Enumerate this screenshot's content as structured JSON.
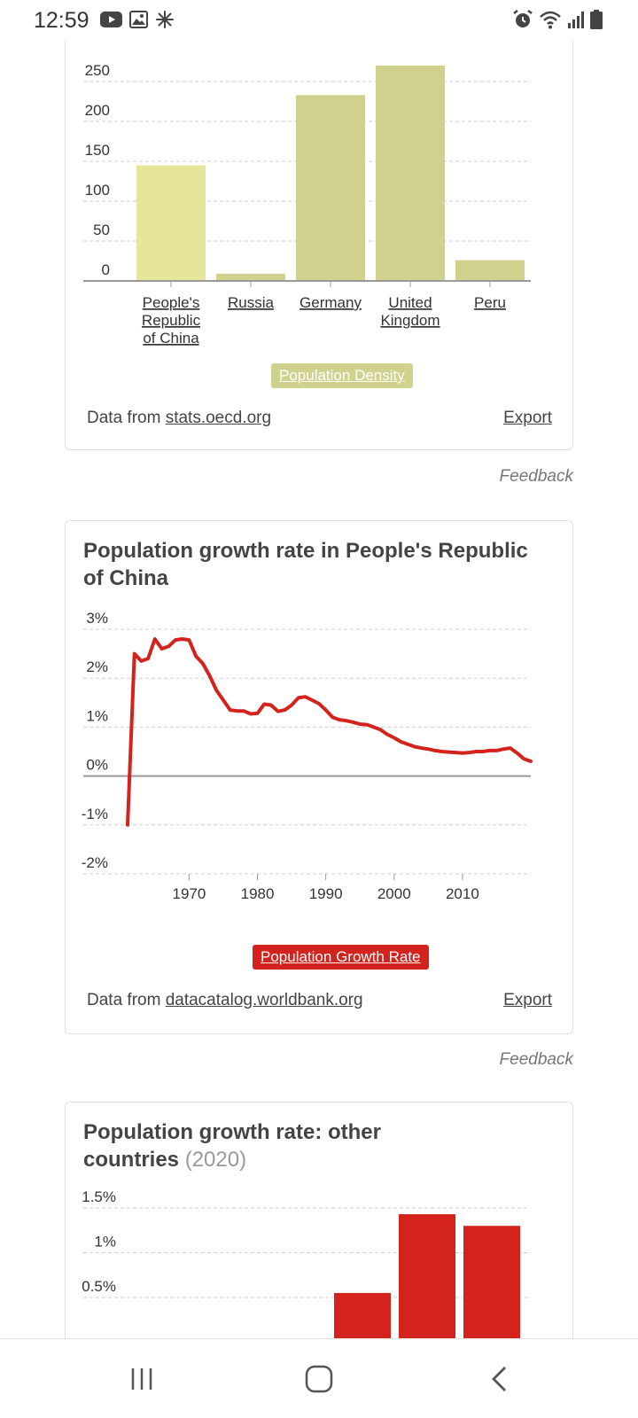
{
  "status_bar": {
    "time": "12:59",
    "left_icons": [
      "youtube-icon",
      "image-icon",
      "pinwheel-icon"
    ],
    "right_icons": [
      "alarm-icon",
      "wifi-icon",
      "signal-icon",
      "battery-icon"
    ]
  },
  "density_card": {
    "legend_label": "Population Density",
    "source_prefix": "Data from",
    "source_link": "stats.oecd.org",
    "export_label": "Export",
    "feedback_label": "Feedback",
    "colors": {
      "primary": "#e6e69a",
      "secondary": "#d1d18e"
    },
    "chart_data": {
      "type": "bar",
      "categories": [
        "People's Republic of China",
        "Russia",
        "Germany",
        "United Kingdom",
        "Peru"
      ],
      "category_lines": [
        [
          "People's",
          "Republic",
          "of China"
        ],
        [
          "Russia"
        ],
        [
          "Germany"
        ],
        [
          "United",
          "Kingdom"
        ],
        [
          "Peru"
        ]
      ],
      "values": [
        145,
        9,
        233,
        270,
        26
      ],
      "y_ticks": [
        0,
        50,
        100,
        150,
        200,
        250
      ],
      "ylim": [
        0,
        270
      ],
      "legend": "Population Density"
    }
  },
  "growth_card": {
    "title": "Population growth rate in People's Republic of China",
    "legend_label": "Population Growth Rate",
    "source_prefix": "Data from",
    "source_link": "datacatalog.worldbank.org",
    "export_label": "Export",
    "feedback_label": "Feedback",
    "colors": {
      "line": "#d3231c"
    },
    "chart_data": {
      "type": "line",
      "title": "Population growth rate in People's Republic of China",
      "x": [
        1961,
        1962,
        1963,
        1964,
        1965,
        1966,
        1967,
        1968,
        1969,
        1970,
        1971,
        1972,
        1973,
        1974,
        1975,
        1976,
        1977,
        1978,
        1979,
        1980,
        1981,
        1982,
        1983,
        1984,
        1985,
        1986,
        1987,
        1988,
        1989,
        1990,
        1991,
        1992,
        1993,
        1994,
        1995,
        1996,
        1997,
        1998,
        1999,
        2000,
        2001,
        2002,
        2003,
        2004,
        2005,
        2006,
        2007,
        2008,
        2009,
        2010,
        2011,
        2012,
        2013,
        2014,
        2015,
        2016,
        2017,
        2018,
        2019,
        2020
      ],
      "y": [
        -1.0,
        2.5,
        2.35,
        2.4,
        2.8,
        2.6,
        2.65,
        2.78,
        2.8,
        2.78,
        2.45,
        2.3,
        2.05,
        1.75,
        1.55,
        1.35,
        1.33,
        1.33,
        1.27,
        1.28,
        1.47,
        1.45,
        1.32,
        1.35,
        1.45,
        1.6,
        1.62,
        1.55,
        1.48,
        1.35,
        1.2,
        1.15,
        1.13,
        1.1,
        1.06,
        1.05,
        1.0,
        0.95,
        0.85,
        0.78,
        0.7,
        0.65,
        0.6,
        0.57,
        0.55,
        0.52,
        0.5,
        0.49,
        0.48,
        0.47,
        0.48,
        0.5,
        0.5,
        0.52,
        0.52,
        0.55,
        0.57,
        0.47,
        0.35,
        0.3
      ],
      "y_ticks": [
        3,
        2,
        1,
        0,
        -1,
        -2
      ],
      "y_tick_labels": [
        "3%",
        "2%",
        "1%",
        "0%",
        "-1%",
        "-2%"
      ],
      "x_ticks": [
        1970,
        1980,
        1990,
        2000,
        2010
      ],
      "x_tick_labels": [
        "1970",
        "1980",
        "1990",
        "2000",
        "2010"
      ],
      "xlim": [
        1961,
        2020
      ],
      "ylim": [
        -2,
        3
      ],
      "legend": "Population Growth Rate"
    }
  },
  "other_card": {
    "title_main": "Population growth rate: other countries",
    "title_year": "(2020)",
    "colors": {
      "bar": "#d3231c"
    },
    "chart_data": {
      "type": "bar",
      "title": "Population growth rate: other countries (2020)",
      "values": [
        0.55,
        1.43,
        1.3
      ],
      "y_ticks": [
        1.5,
        1,
        0.5
      ],
      "y_tick_labels": [
        "1.5%",
        "1%",
        "0.5%"
      ],
      "ylim": [
        0,
        1.5
      ]
    }
  },
  "nav_bar": {
    "items": [
      "recent-apps-icon",
      "home-icon",
      "back-icon"
    ]
  }
}
